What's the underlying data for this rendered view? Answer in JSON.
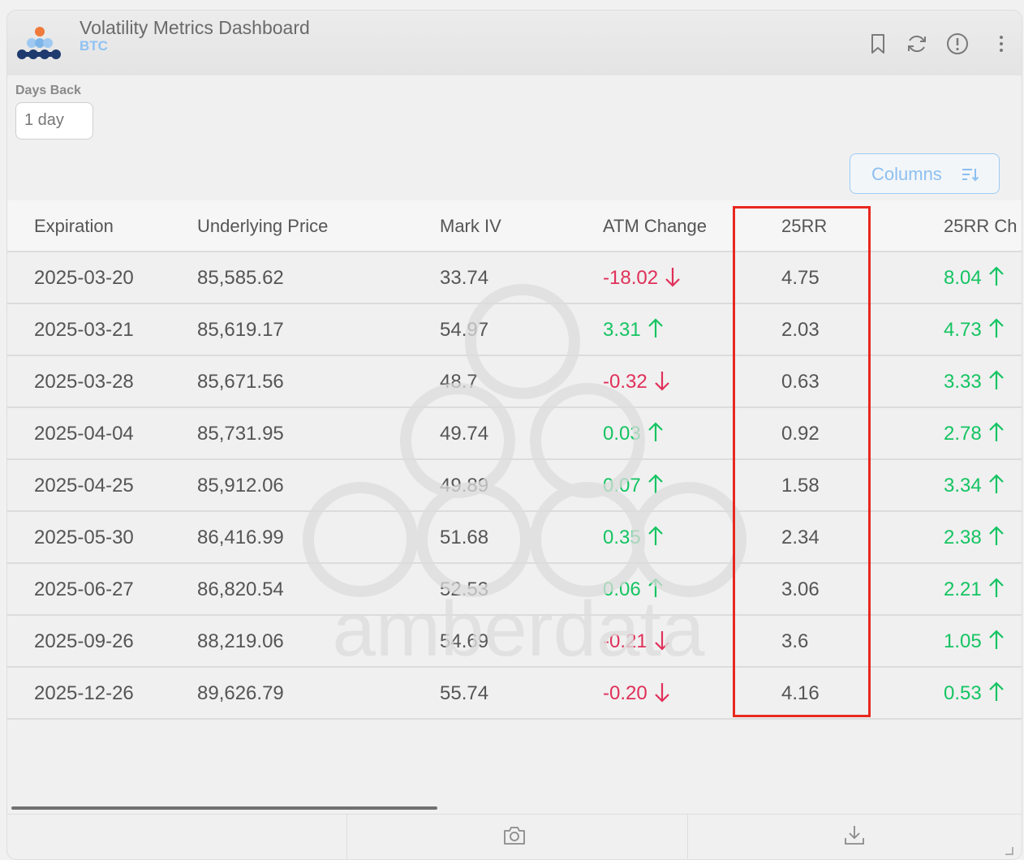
{
  "header": {
    "title": "Volatility Metrics Dashboard",
    "subtitle": "BTC",
    "icons": [
      "bookmark-icon",
      "refresh-icon",
      "info-icon",
      "more-vertical-icon"
    ]
  },
  "filters": {
    "days_back_label": "Days Back",
    "days_back_value": "1 day"
  },
  "toolbar": {
    "columns_label": "Columns"
  },
  "table": {
    "columns": [
      "Expiration",
      "Underlying Price",
      "Mark IV",
      "ATM Change",
      "25RR",
      "25RR Ch"
    ],
    "rows": [
      {
        "expiration": "2025-03-20",
        "price": "85,585.62",
        "mark_iv": "33.74",
        "atm_change": "-18.02",
        "atm_dir": "down",
        "rr25": "4.75",
        "rr25_change": "8.04",
        "rr25_dir": "up"
      },
      {
        "expiration": "2025-03-21",
        "price": "85,619.17",
        "mark_iv": "54.97",
        "atm_change": "3.31",
        "atm_dir": "up",
        "rr25": "2.03",
        "rr25_change": "4.73",
        "rr25_dir": "up"
      },
      {
        "expiration": "2025-03-28",
        "price": "85,671.56",
        "mark_iv": "48.7",
        "atm_change": "-0.32",
        "atm_dir": "down",
        "rr25": "0.63",
        "rr25_change": "3.33",
        "rr25_dir": "up"
      },
      {
        "expiration": "2025-04-04",
        "price": "85,731.95",
        "mark_iv": "49.74",
        "atm_change": "0.03",
        "atm_dir": "up",
        "rr25": "0.92",
        "rr25_change": "2.78",
        "rr25_dir": "up"
      },
      {
        "expiration": "2025-04-25",
        "price": "85,912.06",
        "mark_iv": "49.89",
        "atm_change": "0.07",
        "atm_dir": "up",
        "rr25": "1.58",
        "rr25_change": "3.34",
        "rr25_dir": "up"
      },
      {
        "expiration": "2025-05-30",
        "price": "86,416.99",
        "mark_iv": "51.68",
        "atm_change": "0.35",
        "atm_dir": "up",
        "rr25": "2.34",
        "rr25_change": "2.38",
        "rr25_dir": "up"
      },
      {
        "expiration": "2025-06-27",
        "price": "86,820.54",
        "mark_iv": "52.53",
        "atm_change": "0.06",
        "atm_dir": "up",
        "rr25": "3.06",
        "rr25_change": "2.21",
        "rr25_dir": "up"
      },
      {
        "expiration": "2025-09-26",
        "price": "88,219.06",
        "mark_iv": "54.69",
        "atm_change": "-0.21",
        "atm_dir": "down",
        "rr25": "3.6",
        "rr25_change": "1.05",
        "rr25_dir": "up"
      },
      {
        "expiration": "2025-12-26",
        "price": "89,626.79",
        "mark_iv": "55.74",
        "atm_change": "-0.20",
        "atm_dir": "down",
        "rr25": "4.16",
        "rr25_change": "0.53",
        "rr25_dir": "up"
      }
    ]
  },
  "watermark": {
    "text": "amberdata"
  },
  "colors": {
    "positive": "#15c462",
    "negative": "#e0305a",
    "accent": "#8cc0f0",
    "highlight": "#e8281e"
  },
  "footer": {
    "icons": [
      "camera-icon",
      "download-icon"
    ]
  }
}
